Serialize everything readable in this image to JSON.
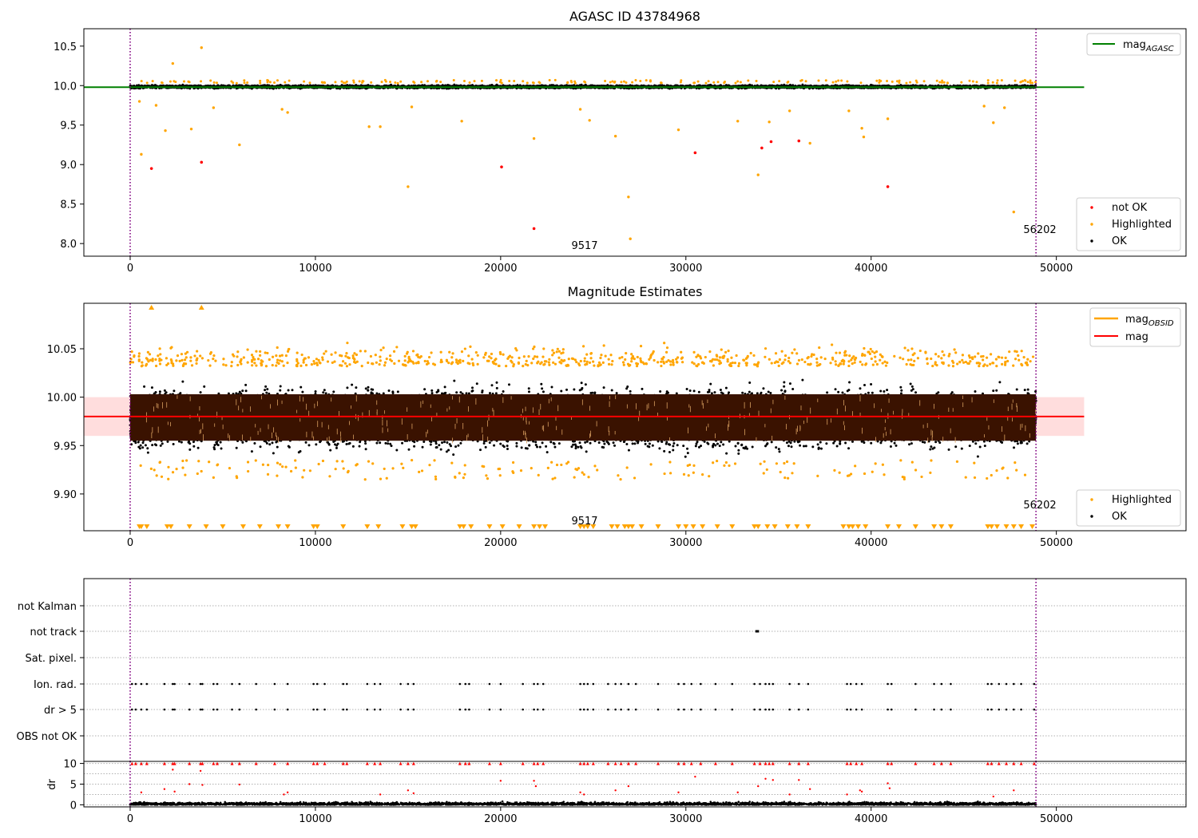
{
  "chart_data": [
    {
      "type": "scatter",
      "title": "AGASC ID 43784968",
      "xlim": [
        -2500,
        57000
      ],
      "ylim": [
        7.84,
        10.72
      ],
      "x_ticks": [
        0,
        10000,
        20000,
        30000,
        40000,
        50000
      ],
      "y_ticks": [
        8.0,
        8.5,
        9.0,
        9.5,
        10.0,
        10.5
      ],
      "vlines": [
        {
          "x": 0,
          "color": "#800080",
          "style": "dotted"
        },
        {
          "x": 48900,
          "color": "#800080",
          "style": "dotted"
        }
      ],
      "annotations": [
        {
          "text": "9517",
          "x": 24400,
          "y": 7.92
        },
        {
          "text": "56202",
          "x": 48900,
          "y": 8.12
        }
      ],
      "hline": {
        "name": "mag_AGASC",
        "y": 9.98,
        "x": [
          -2500,
          51500
        ],
        "color": "#008000"
      },
      "ok_band": {
        "x_range": [
          0,
          48900
        ],
        "y_range": [
          9.94,
          10.03
        ]
      },
      "series": [
        {
          "name": "not OK",
          "color": "#ff0000",
          "points": [
            [
              1150,
              8.95
            ],
            [
              3850,
              9.03
            ],
            [
              20050,
              8.97
            ],
            [
              21800,
              8.19
            ],
            [
              30500,
              9.15
            ],
            [
              34100,
              9.21
            ],
            [
              34600,
              9.29
            ],
            [
              36100,
              9.3
            ],
            [
              40900,
              8.72
            ]
          ]
        },
        {
          "name": "Highlighted",
          "color": "#ffa500",
          "points": [
            [
              2300,
              10.28
            ],
            [
              3850,
              10.48
            ],
            [
              600,
              9.13
            ],
            [
              1900,
              9.43
            ],
            [
              3300,
              9.45
            ],
            [
              5900,
              9.25
            ],
            [
              15000,
              8.72
            ],
            [
              15200,
              9.73
            ],
            [
              17900,
              9.55
            ],
            [
              21800,
              9.33
            ],
            [
              24800,
              9.56
            ],
            [
              26200,
              9.36
            ],
            [
              26900,
              8.59
            ],
            [
              27000,
              8.06
            ],
            [
              29600,
              9.44
            ],
            [
              33900,
              8.87
            ],
            [
              34500,
              9.54
            ],
            [
              36700,
              9.27
            ],
            [
              39500,
              9.46
            ],
            [
              39600,
              9.35
            ],
            [
              40900,
              9.58
            ],
            [
              46600,
              9.53
            ],
            [
              47700,
              8.4
            ],
            [
              500,
              9.8
            ],
            [
              1400,
              9.75
            ],
            [
              4500,
              9.72
            ],
            [
              8200,
              9.7
            ],
            [
              8500,
              9.66
            ],
            [
              12900,
              9.48
            ],
            [
              13500,
              9.48
            ],
            [
              24300,
              9.7
            ],
            [
              32800,
              9.55
            ],
            [
              35600,
              9.68
            ],
            [
              38800,
              9.68
            ],
            [
              46100,
              9.74
            ],
            [
              47200,
              9.72
            ]
          ]
        },
        {
          "name": "OK",
          "color": "#000000",
          "points": []
        }
      ],
      "legend": [
        {
          "name": "mag_AGASC",
          "placement": "top-right"
        },
        {
          "names": [
            "not OK",
            "Highlighted",
            "OK"
          ],
          "placement": "bottom-right"
        }
      ]
    },
    {
      "type": "scatter",
      "title": "Magnitude Estimates",
      "xlim": [
        -2500,
        57000
      ],
      "ylim": [
        9.862,
        10.097
      ],
      "x_ticks": [
        0,
        10000,
        20000,
        30000,
        40000,
        50000
      ],
      "y_ticks": [
        9.9,
        9.95,
        10.0,
        10.05
      ],
      "vlines": [
        {
          "x": 0,
          "color": "#800080",
          "style": "dotted"
        },
        {
          "x": 48900,
          "color": "#800080",
          "style": "dotted"
        }
      ],
      "annotations": [
        {
          "text": "9517",
          "x": 24400,
          "y": 9.872
        },
        {
          "text": "56202",
          "x": 48900,
          "y": 9.886
        }
      ],
      "hline": {
        "name": "mag",
        "y": 9.98,
        "x": [
          -2500,
          51500
        ],
        "color": "#ff0000"
      },
      "band": {
        "y_range": [
          9.96,
          10.0
        ],
        "x": [
          -2500,
          51500
        ],
        "color": "#ffdddd"
      },
      "mag_obsid_range": [
        9.955,
        10.003
      ],
      "ok_band": {
        "x_range": [
          0,
          48900
        ],
        "y_range": [
          9.92,
          10.035
        ]
      },
      "highlighted_band": {
        "x_range": [
          0,
          48900
        ],
        "y_range": [
          9.91,
          10.07
        ]
      },
      "out_of_range_up": [
        1150,
        3850
      ],
      "out_of_range_down": [
        500,
        600,
        900,
        2000,
        2200,
        3200,
        4100,
        5000,
        6100,
        7000,
        8000,
        8500,
        9900,
        10100,
        11500,
        12800,
        13400,
        14700,
        15200,
        15400,
        17800,
        18000,
        18400,
        19400,
        20100,
        21000,
        21800,
        22100,
        22400,
        24300,
        24500,
        24700,
        25000,
        26000,
        26300,
        26700,
        26900,
        27100,
        27600,
        28500,
        29600,
        30000,
        30400,
        30900,
        31700,
        32500,
        33700,
        33900,
        34400,
        34800,
        35500,
        36000,
        36600,
        38500,
        38800,
        39000,
        39300,
        39700,
        40900,
        41500,
        42400,
        43400,
        43800,
        44300,
        46300,
        46500,
        46800,
        47300,
        47700,
        48100,
        48700
      ],
      "series": [
        {
          "name": "Highlighted",
          "color": "#ffa500"
        },
        {
          "name": "OK",
          "color": "#000000"
        }
      ],
      "lines": [
        {
          "name": "mag_OBSID",
          "color": "#ffa500"
        },
        {
          "name": "mag",
          "color": "#ff0000"
        }
      ],
      "legend": [
        {
          "names": [
            "mag_OBSID",
            "mag"
          ],
          "placement": "top-right"
        },
        {
          "names": [
            "Highlighted",
            "OK"
          ],
          "placement": "bottom-right"
        }
      ]
    },
    {
      "type": "scatter",
      "title": "",
      "xlim": [
        -2500,
        57000
      ],
      "x_ticks": [
        0,
        10000,
        20000,
        30000,
        40000,
        50000
      ],
      "vlines": [
        {
          "x": 0,
          "color": "#800080",
          "style": "dotted"
        },
        {
          "x": 48900,
          "color": "#800080",
          "style": "dotted"
        }
      ],
      "flag_categories": [
        "not Kalman",
        "not track",
        "Sat. pixel.",
        "Ion. rad.",
        "dr > 5",
        "OBS not OK"
      ],
      "flag_marks": {
        "not track": [
          [
            33750,
            33950
          ]
        ],
        "Ion. rad.": [
          100,
          300,
          600,
          900,
          1850,
          2300,
          2400,
          3200,
          3800,
          3900,
          4500,
          4700,
          5500,
          5900,
          6800,
          7800,
          8500,
          9900,
          10100,
          10500,
          11500,
          11700,
          12800,
          13200,
          13500,
          14600,
          15000,
          15300,
          17800,
          18100,
          18300,
          19400,
          20000,
          21200,
          21800,
          22000,
          22300,
          24300,
          24500,
          24700,
          25000,
          25800,
          26200,
          26500,
          26900,
          27300,
          28500,
          29600,
          29900,
          30300,
          30800,
          31600,
          32500,
          33700,
          34000,
          34300,
          34500,
          34700,
          35600,
          36100,
          36600,
          38700,
          38900,
          39200,
          39500,
          40900,
          41100,
          42400,
          43400,
          43800,
          44300,
          46300,
          46500,
          46900,
          47300,
          47700,
          48100,
          48800
        ],
        "dr > 5": [
          100,
          300,
          600,
          900,
          1850,
          2300,
          2400,
          3200,
          3800,
          3900,
          4500,
          4700,
          5500,
          5900,
          6800,
          7800,
          8500,
          9900,
          10100,
          10500,
          11500,
          11700,
          12800,
          13200,
          13500,
          14600,
          15000,
          15300,
          17800,
          18100,
          18300,
          19400,
          20000,
          21200,
          21800,
          22000,
          22300,
          24300,
          24500,
          24700,
          25000,
          25800,
          26200,
          26500,
          26900,
          27300,
          28500,
          29600,
          29900,
          30300,
          30800,
          31600,
          32500,
          33700,
          34000,
          34300,
          34500,
          34700,
          35600,
          36100,
          36600,
          38700,
          38900,
          39200,
          39500,
          40900,
          41100,
          42400,
          43400,
          43800,
          44300,
          46300,
          46500,
          46900,
          47300,
          47700,
          48100,
          48800
        ]
      }
    },
    {
      "type": "scatter",
      "title": "",
      "ylabel": "dr",
      "xlim": [
        -2500,
        57000
      ],
      "ylim": [
        -0.5,
        10.5
      ],
      "x_ticks": [
        0,
        10000,
        20000,
        30000,
        40000,
        50000
      ],
      "y_ticks": [
        0,
        5,
        10
      ],
      "vlines": [
        {
          "x": 0,
          "color": "#800080",
          "style": "dotted"
        },
        {
          "x": 48900,
          "color": "#800080",
          "style": "dotted"
        }
      ],
      "ok_band": {
        "x_range": [
          0,
          48900
        ],
        "y_range": [
          0,
          0.8
        ]
      },
      "clipped_at_10": [
        100,
        300,
        600,
        900,
        1850,
        2300,
        2400,
        3200,
        3800,
        3900,
        4500,
        4700,
        5500,
        5900,
        6800,
        7800,
        8500,
        9900,
        10100,
        10500,
        11500,
        11700,
        12800,
        13200,
        13500,
        14600,
        15000,
        15300,
        17800,
        18100,
        18300,
        19400,
        20000,
        21200,
        21800,
        22000,
        22300,
        24300,
        24500,
        24700,
        25000,
        25800,
        26200,
        26500,
        26900,
        27300,
        28500,
        29600,
        29900,
        30300,
        30800,
        31600,
        32500,
        33700,
        34000,
        34300,
        34500,
        34700,
        35600,
        36100,
        36600,
        38700,
        38900,
        39200,
        39500,
        40900,
        41100,
        42400,
        43400,
        43800,
        44300,
        46300,
        46500,
        46900,
        47300,
        47700,
        48100,
        48800
      ],
      "mid_points": [
        [
          600,
          3.0
        ],
        [
          1850,
          3.8
        ],
        [
          2300,
          8.5
        ],
        [
          2400,
          3.2
        ],
        [
          3200,
          5.0
        ],
        [
          3800,
          8.2
        ],
        [
          3900,
          4.8
        ],
        [
          5900,
          4.9
        ],
        [
          8300,
          2.5
        ],
        [
          8500,
          3.0
        ],
        [
          13500,
          2.5
        ],
        [
          15000,
          3.5
        ],
        [
          15300,
          2.8
        ],
        [
          20000,
          5.8
        ],
        [
          21800,
          5.8
        ],
        [
          21900,
          4.5
        ],
        [
          24300,
          3.0
        ],
        [
          24500,
          2.5
        ],
        [
          26200,
          3.5
        ],
        [
          26900,
          4.5
        ],
        [
          29600,
          3.0
        ],
        [
          30500,
          6.8
        ],
        [
          32800,
          3.0
        ],
        [
          33900,
          4.5
        ],
        [
          34300,
          6.3
        ],
        [
          34700,
          6.0
        ],
        [
          35600,
          2.5
        ],
        [
          36100,
          6.0
        ],
        [
          36700,
          3.8
        ],
        [
          38700,
          2.5
        ],
        [
          39400,
          3.5
        ],
        [
          39500,
          3.2
        ],
        [
          40900,
          5.2
        ],
        [
          41000,
          4.0
        ],
        [
          46600,
          2.0
        ],
        [
          47700,
          3.5
        ]
      ],
      "series": [
        {
          "name": "dr",
          "color": "#000000"
        },
        {
          "name": "dr > 5",
          "color": "#ff0000"
        }
      ]
    }
  ]
}
